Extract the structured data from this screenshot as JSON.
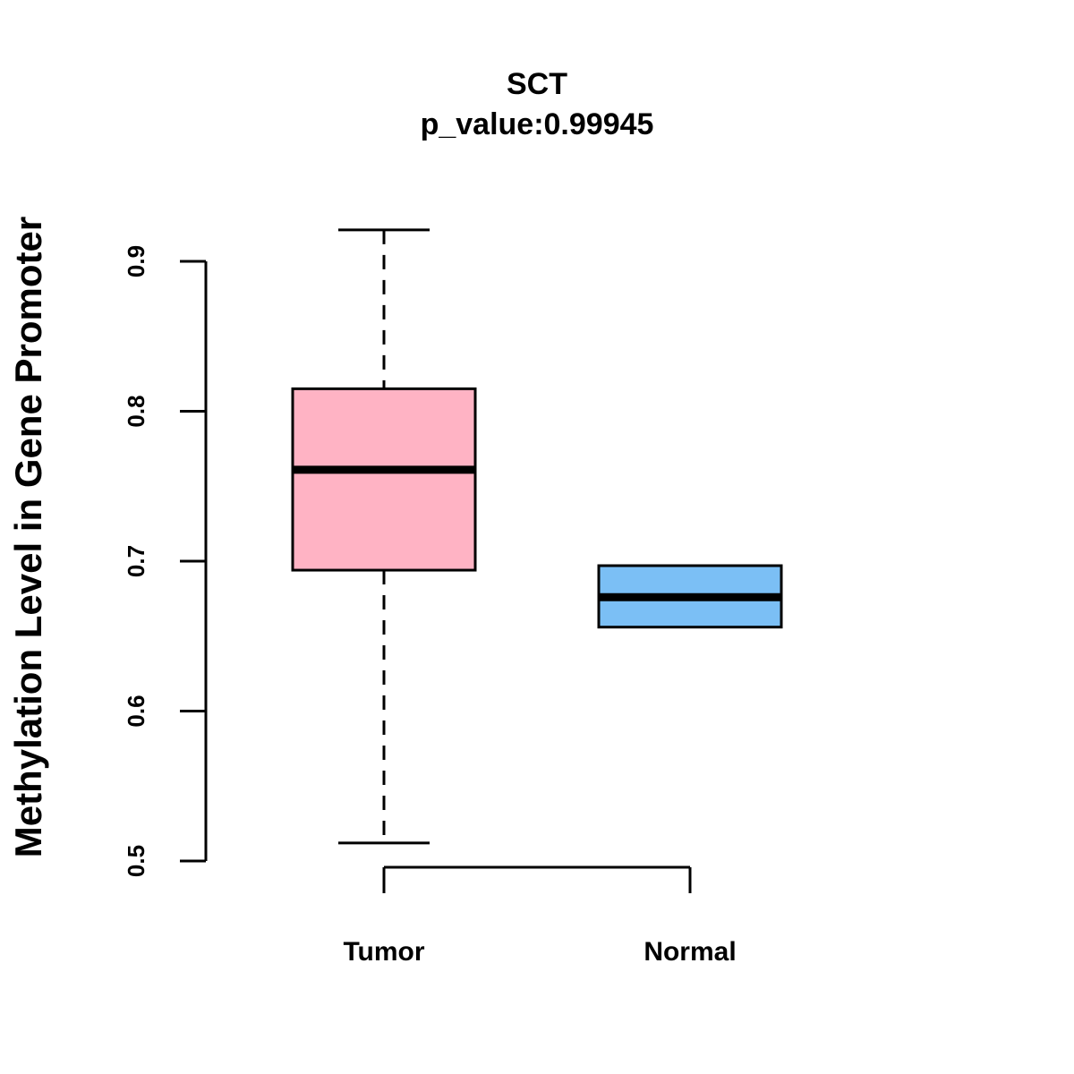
{
  "chart_data": {
    "type": "box",
    "title": "SCT",
    "subtitle": "p_value:0.99945",
    "xlabel": "",
    "ylabel": "Methylation Level in Gene Promoter",
    "ylim": [
      0.5,
      0.92
    ],
    "yticks": [
      0.5,
      0.6,
      0.7,
      0.8,
      0.9
    ],
    "ytick_labels": [
      "0.5",
      "0.6",
      "0.7",
      "0.8",
      "0.9"
    ],
    "grid": false,
    "groups": [
      {
        "name": "Tumor",
        "color": "#FFB3C4",
        "min": 0.512,
        "q1": 0.694,
        "median": 0.761,
        "q3": 0.815,
        "max": 0.921
      },
      {
        "name": "Normal",
        "color": "#7BBFF5",
        "min": 0.656,
        "q1": 0.656,
        "median": 0.676,
        "q3": 0.697,
        "max": 0.697
      }
    ]
  }
}
